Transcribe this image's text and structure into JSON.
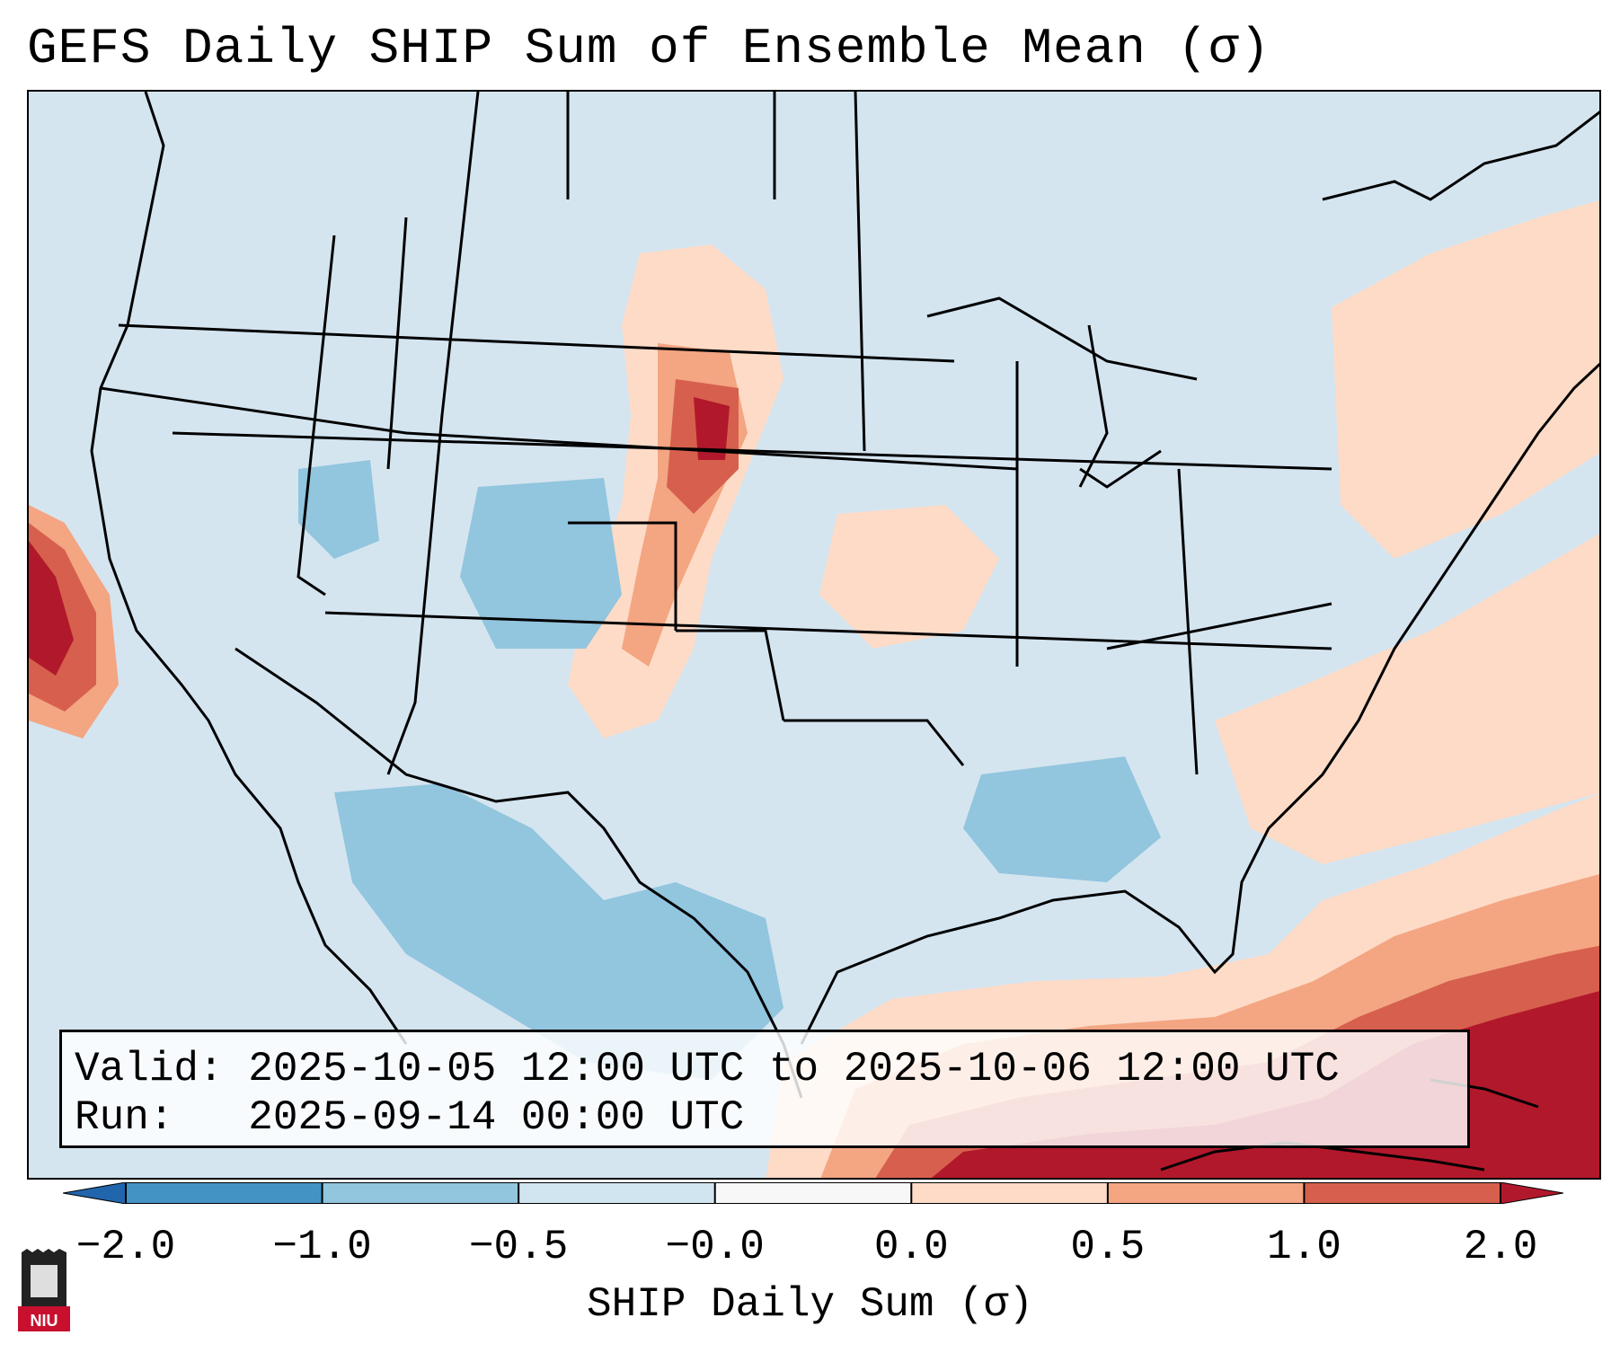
{
  "title": "GEFS Daily SHIP Sum of Ensemble Mean (σ)",
  "info": {
    "valid_label": "Valid:",
    "valid_text": "2025-10-05 12:00 UTC to 2025-10-06 12:00 UTC",
    "run_label": "Run:",
    "run_text": "2025-09-14 00:00 UTC"
  },
  "colorbar": {
    "label": "SHIP Daily Sum (σ)",
    "ticks": [
      "−2.0",
      "−1.0",
      "−0.5",
      "−0.0",
      "0.0",
      "0.5",
      "1.0",
      "2.0"
    ],
    "colors": [
      "#2c7bb6",
      "#4493c5",
      "#92c5de",
      "#d1e5f0",
      "#fddbc7",
      "#f4a582",
      "#d6604d",
      "#b2182b"
    ],
    "extend_low_color": "#2166ac",
    "extend_high_color": "#b2182b"
  },
  "map": {
    "region": "Contiguous United States",
    "background_color": "#d4e5f0",
    "features": [
      {
        "name": "positive-anomaly-gulf-caribbean",
        "level": "high"
      },
      {
        "name": "positive-anomaly-northern-plains",
        "level": "high"
      },
      {
        "name": "positive-anomaly-east-pacific",
        "level": "high"
      },
      {
        "name": "negative-anomaly-southwest",
        "level": "low"
      }
    ]
  },
  "logo": {
    "text": "NIU",
    "color": "#c8102e"
  }
}
